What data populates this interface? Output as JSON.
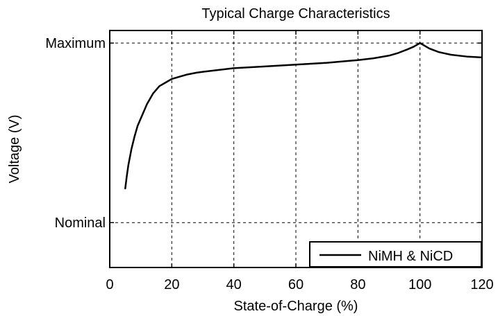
{
  "chart_data": {
    "type": "line",
    "title": "Typical Charge Characteristics",
    "xlabel": "State-of-Charge (%)",
    "ylabel": "Voltage (V)",
    "xlim": [
      0,
      120
    ],
    "ylim": [
      -0.25,
      1.07
    ],
    "x_ticks": [
      0,
      20,
      40,
      60,
      80,
      100,
      120
    ],
    "y_ticks": [
      {
        "value": 0,
        "label": "Nominal"
      },
      {
        "value": 1,
        "label": "Maximum"
      }
    ],
    "grid": true,
    "legend_position": "bottom-right",
    "colors": {
      "line": "#000000",
      "grid": "#000000",
      "background": "#ffffff"
    },
    "series": [
      {
        "name": "NiMH & NiCD",
        "x": [
          5,
          5.5,
          6,
          7,
          8,
          9,
          10,
          12,
          14,
          16,
          18,
          20,
          22,
          25,
          28,
          30,
          35,
          40,
          50,
          60,
          70,
          80,
          85,
          90,
          93,
          96,
          98,
          99,
          100,
          101,
          103,
          106,
          110,
          115,
          120
        ],
        "y": [
          0.19,
          0.26,
          0.32,
          0.41,
          0.48,
          0.54,
          0.58,
          0.66,
          0.72,
          0.76,
          0.78,
          0.8,
          0.81,
          0.825,
          0.835,
          0.84,
          0.85,
          0.86,
          0.87,
          0.88,
          0.89,
          0.905,
          0.915,
          0.93,
          0.945,
          0.965,
          0.98,
          0.99,
          1.0,
          0.99,
          0.97,
          0.95,
          0.935,
          0.925,
          0.92
        ]
      }
    ]
  }
}
